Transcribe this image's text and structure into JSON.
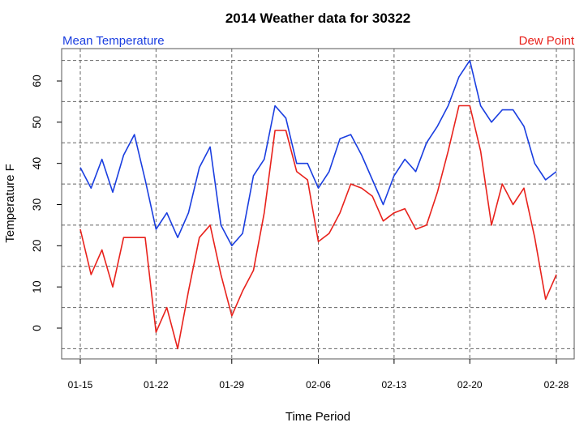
{
  "chart_data": {
    "type": "line",
    "title": "2014 Weather data for 30322",
    "xlabel": "Time Period",
    "ylabel": "Temperature F",
    "ylim": [
      -5,
      65
    ],
    "yticks": [
      0,
      10,
      20,
      30,
      40,
      50,
      60
    ],
    "grid": true,
    "x_tick_labels": [
      "01-15",
      "01-22",
      "01-29",
      "02-06",
      "02-13",
      "02-20",
      "02-28"
    ],
    "x_tick_days": [
      0,
      7,
      14,
      22,
      29,
      36,
      44
    ],
    "x_days_from_start": [
      0,
      1,
      2,
      3,
      4,
      5,
      6,
      7,
      8,
      9,
      10,
      11,
      12,
      13,
      14,
      15,
      16,
      17,
      18,
      19,
      20,
      21,
      22,
      23,
      24,
      25,
      26,
      27,
      28,
      29,
      30,
      31,
      32,
      33,
      34,
      35,
      36,
      37,
      38,
      39,
      40,
      41,
      42,
      43,
      44
    ],
    "series": [
      {
        "name": "Mean Temperature",
        "color": "#1a3ee0",
        "legend_position": "top-left",
        "values": [
          39,
          34,
          41,
          33,
          42,
          47,
          36,
          24,
          28,
          22,
          28,
          39,
          44,
          25,
          20,
          23,
          37,
          41,
          54,
          51,
          40,
          40,
          34,
          38,
          46,
          47,
          42,
          36,
          30,
          37,
          41,
          38,
          45,
          49,
          54,
          61,
          65,
          54,
          50,
          53,
          53,
          49,
          40,
          36,
          38
        ]
      },
      {
        "name": "Dew Point",
        "color": "#e8221c",
        "legend_position": "top-right",
        "values": [
          24,
          13,
          19,
          10,
          22,
          22,
          22,
          -1,
          5,
          -5,
          9,
          22,
          25,
          13,
          3,
          9,
          14,
          28,
          48,
          48,
          38,
          36,
          21,
          23,
          28,
          35,
          34,
          32,
          26,
          28,
          29,
          24,
          25,
          33,
          43,
          54,
          54,
          43,
          25,
          35,
          30,
          34,
          22,
          7,
          13
        ]
      }
    ]
  }
}
